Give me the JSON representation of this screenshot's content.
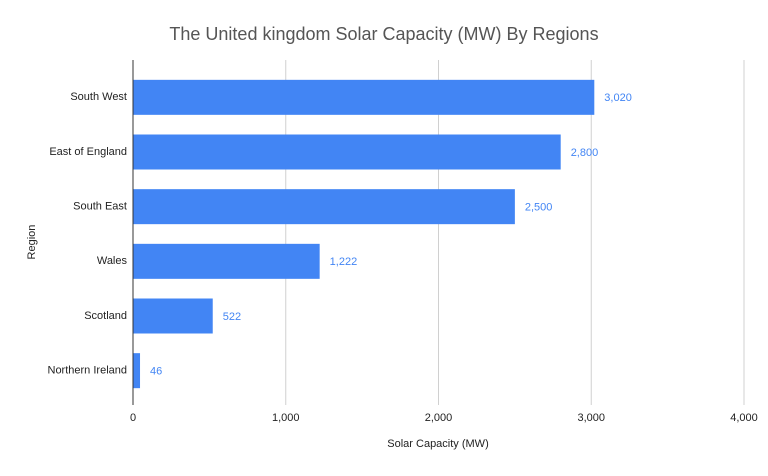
{
  "chart_data": {
    "type": "bar",
    "orientation": "horizontal",
    "title": "The United kingdom Solar Capacity (MW) By Regions",
    "x_label": "Solar Capacity (MW)",
    "y_label": "Region",
    "categories": [
      "South West",
      "East of England",
      "South East",
      "Wales",
      "Scotland",
      "Northern Ireland"
    ],
    "values": [
      3020,
      2800,
      2500,
      1222,
      522,
      46
    ],
    "value_labels": [
      "3,020",
      "2,800",
      "2,500",
      "1,222",
      "522",
      "46"
    ],
    "color": "#4285f4",
    "xlim": [
      0,
      4000
    ],
    "xticks": [
      0,
      {
        "value": 1000,
        "label": "1,000"
      },
      {
        "value": 2000,
        "label": "2,000"
      },
      {
        "value": 3000,
        "label": "3,000"
      },
      {
        "value": 4000,
        "label": "4,000"
      }
    ],
    "grid": true
  }
}
